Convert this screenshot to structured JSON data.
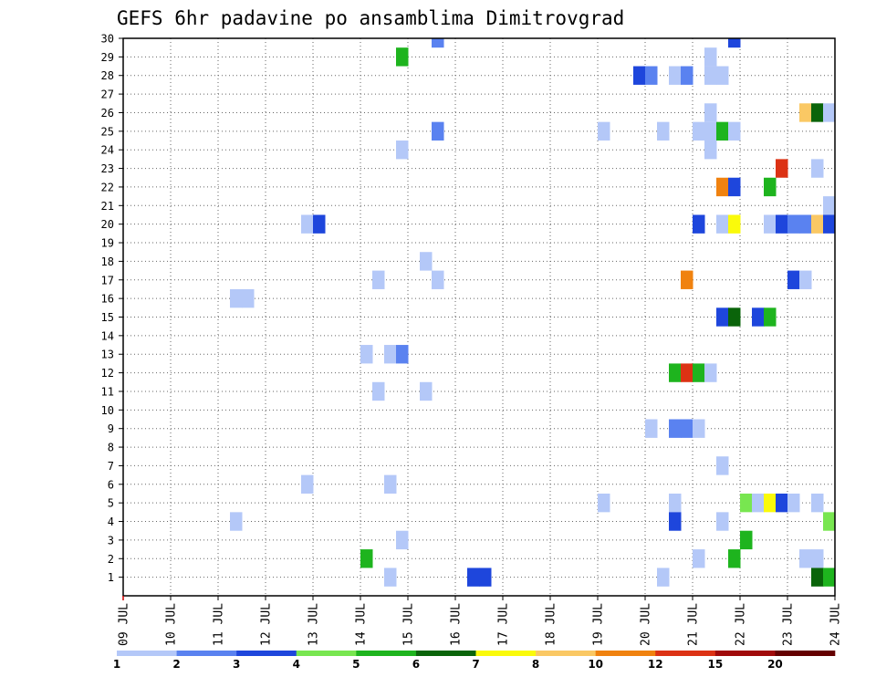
{
  "chart_data": {
    "type": "heatmap",
    "title": "GEFS 6hr padavine po ansamblima Dimitrovgrad",
    "x_tick_labels": [
      "09 JUL",
      "10 JUL",
      "11 JUL",
      "12 JUL",
      "13 JUL",
      "14 JUL",
      "15 JUL",
      "16 JUL",
      "17 JUL",
      "18 JUL",
      "19 JUL",
      "20 JUL",
      "21 JUL",
      "22 JUL",
      "23 JUL",
      "24 JUL"
    ],
    "y_tick_labels": [
      "1",
      "2",
      "3",
      "4",
      "5",
      "6",
      "7",
      "8",
      "9",
      "10",
      "11",
      "12",
      "13",
      "14",
      "15",
      "16",
      "17",
      "18",
      "19",
      "20",
      "21",
      "22",
      "23",
      "24",
      "25",
      "26",
      "27",
      "28",
      "29",
      "30"
    ],
    "x_range_days": [
      0,
      15
    ],
    "y_range": [
      0,
      30
    ],
    "grid": true,
    "legend": {
      "placement": "bottom",
      "labels": [
        "1",
        "2",
        "3",
        "4",
        "5",
        "6",
        "7",
        "8",
        "10",
        "12",
        "15",
        "20"
      ],
      "colors": [
        "#b4c8f8",
        "#5a82f0",
        "#1e46dc",
        "#78e650",
        "#1eb41e",
        "#0a640a",
        "#fafa0a",
        "#fac864",
        "#f0820f",
        "#dc3214",
        "#a00a0a",
        "#640000"
      ]
    },
    "cells": [
      {
        "member": 30,
        "day": 6.5,
        "c": 1
      },
      {
        "member": 30,
        "day": 12.75,
        "c": 2
      },
      {
        "member": 29,
        "day": 5.75,
        "c": 4
      },
      {
        "member": 29,
        "day": 12.25,
        "c": 0
      },
      {
        "member": 28,
        "day": 10.75,
        "c": 2
      },
      {
        "member": 28,
        "day": 11.0,
        "c": 1
      },
      {
        "member": 28,
        "day": 11.5,
        "c": 0
      },
      {
        "member": 28,
        "day": 11.75,
        "c": 1
      },
      {
        "member": 28,
        "day": 12.25,
        "c": 0
      },
      {
        "member": 28,
        "day": 12.5,
        "c": 0
      },
      {
        "member": 26,
        "day": 12.25,
        "c": 0
      },
      {
        "member": 26,
        "day": 14.25,
        "c": 7
      },
      {
        "member": 26,
        "day": 14.5,
        "c": 5
      },
      {
        "member": 26,
        "day": 14.75,
        "c": 0
      },
      {
        "member": 25,
        "day": 6.5,
        "c": 1
      },
      {
        "member": 25,
        "day": 10.0,
        "c": 0
      },
      {
        "member": 25,
        "day": 11.25,
        "c": 0
      },
      {
        "member": 25,
        "day": 12.0,
        "c": 0
      },
      {
        "member": 25,
        "day": 12.25,
        "c": 0
      },
      {
        "member": 25,
        "day": 12.5,
        "c": 4
      },
      {
        "member": 25,
        "day": 12.75,
        "c": 0
      },
      {
        "member": 24,
        "day": 5.75,
        "c": 0
      },
      {
        "member": 24,
        "day": 12.25,
        "c": 0
      },
      {
        "member": 23,
        "day": 13.75,
        "c": 9
      },
      {
        "member": 23,
        "day": 14.5,
        "c": 0
      },
      {
        "member": 22,
        "day": 12.5,
        "c": 8
      },
      {
        "member": 22,
        "day": 12.75,
        "c": 2
      },
      {
        "member": 22,
        "day": 13.5,
        "c": 4
      },
      {
        "member": 21,
        "day": 14.75,
        "c": 0
      },
      {
        "member": 20,
        "day": 3.75,
        "c": 0
      },
      {
        "member": 20,
        "day": 4.0,
        "c": 2
      },
      {
        "member": 20,
        "day": 12.0,
        "c": 2
      },
      {
        "member": 20,
        "day": 12.5,
        "c": 0
      },
      {
        "member": 20,
        "day": 12.75,
        "c": 6
      },
      {
        "member": 20,
        "day": 13.5,
        "c": 0
      },
      {
        "member": 20,
        "day": 13.75,
        "c": 2
      },
      {
        "member": 20,
        "day": 14.0,
        "c": 1
      },
      {
        "member": 20,
        "day": 14.25,
        "c": 1
      },
      {
        "member": 20,
        "day": 14.5,
        "c": 7
      },
      {
        "member": 20,
        "day": 14.75,
        "c": 2
      },
      {
        "member": 18,
        "day": 6.25,
        "c": 0
      },
      {
        "member": 17,
        "day": 5.25,
        "c": 0
      },
      {
        "member": 17,
        "day": 6.5,
        "c": 0
      },
      {
        "member": 17,
        "day": 11.75,
        "c": 8
      },
      {
        "member": 17,
        "day": 14.0,
        "c": 2
      },
      {
        "member": 17,
        "day": 14.25,
        "c": 0
      },
      {
        "member": 16,
        "day": 2.25,
        "c": 0
      },
      {
        "member": 16,
        "day": 2.5,
        "c": 0
      },
      {
        "member": 15,
        "day": 12.5,
        "c": 2
      },
      {
        "member": 15,
        "day": 12.75,
        "c": 5
      },
      {
        "member": 15,
        "day": 13.25,
        "c": 2
      },
      {
        "member": 15,
        "day": 13.5,
        "c": 4
      },
      {
        "member": 13,
        "day": 5.0,
        "c": 0
      },
      {
        "member": 13,
        "day": 5.5,
        "c": 0
      },
      {
        "member": 13,
        "day": 5.75,
        "c": 1
      },
      {
        "member": 12,
        "day": 11.5,
        "c": 4
      },
      {
        "member": 12,
        "day": 11.75,
        "c": 9
      },
      {
        "member": 12,
        "day": 12.0,
        "c": 4
      },
      {
        "member": 12,
        "day": 12.25,
        "c": 0
      },
      {
        "member": 11,
        "day": 5.25,
        "c": 0
      },
      {
        "member": 11,
        "day": 6.25,
        "c": 0
      },
      {
        "member": 9,
        "day": 11.0,
        "c": 0
      },
      {
        "member": 9,
        "day": 11.5,
        "c": 1
      },
      {
        "member": 9,
        "day": 11.75,
        "c": 1
      },
      {
        "member": 9,
        "day": 12.0,
        "c": 0
      },
      {
        "member": 7,
        "day": 12.5,
        "c": 0
      },
      {
        "member": 6,
        "day": 3.75,
        "c": 0
      },
      {
        "member": 6,
        "day": 5.5,
        "c": 0
      },
      {
        "member": 5,
        "day": 10.0,
        "c": 0
      },
      {
        "member": 5,
        "day": 11.5,
        "c": 0
      },
      {
        "member": 5,
        "day": 13.0,
        "c": 3
      },
      {
        "member": 5,
        "day": 13.25,
        "c": 0
      },
      {
        "member": 5,
        "day": 13.5,
        "c": 6
      },
      {
        "member": 5,
        "day": 13.75,
        "c": 2
      },
      {
        "member": 5,
        "day": 14.0,
        "c": 0
      },
      {
        "member": 5,
        "day": 14.5,
        "c": 0
      },
      {
        "member": 4,
        "day": 2.25,
        "c": 0
      },
      {
        "member": 4,
        "day": 11.5,
        "c": 2
      },
      {
        "member": 4,
        "day": 12.5,
        "c": 0
      },
      {
        "member": 4,
        "day": 14.75,
        "c": 3
      },
      {
        "member": 3,
        "day": 5.75,
        "c": 0
      },
      {
        "member": 3,
        "day": 13.0,
        "c": 4
      },
      {
        "member": 2,
        "day": 5.0,
        "c": 4
      },
      {
        "member": 2,
        "day": 12.0,
        "c": 0
      },
      {
        "member": 2,
        "day": 12.75,
        "c": 4
      },
      {
        "member": 2,
        "day": 14.25,
        "c": 0
      },
      {
        "member": 2,
        "day": 14.5,
        "c": 0
      },
      {
        "member": 1,
        "day": 5.5,
        "c": 0
      },
      {
        "member": 1,
        "day": 7.25,
        "c": 2
      },
      {
        "member": 1,
        "day": 7.5,
        "c": 2
      },
      {
        "member": 1,
        "day": 11.25,
        "c": 0
      },
      {
        "member": 1,
        "day": 14.5,
        "c": 5
      },
      {
        "member": 1,
        "day": 14.75,
        "c": 4
      }
    ]
  }
}
